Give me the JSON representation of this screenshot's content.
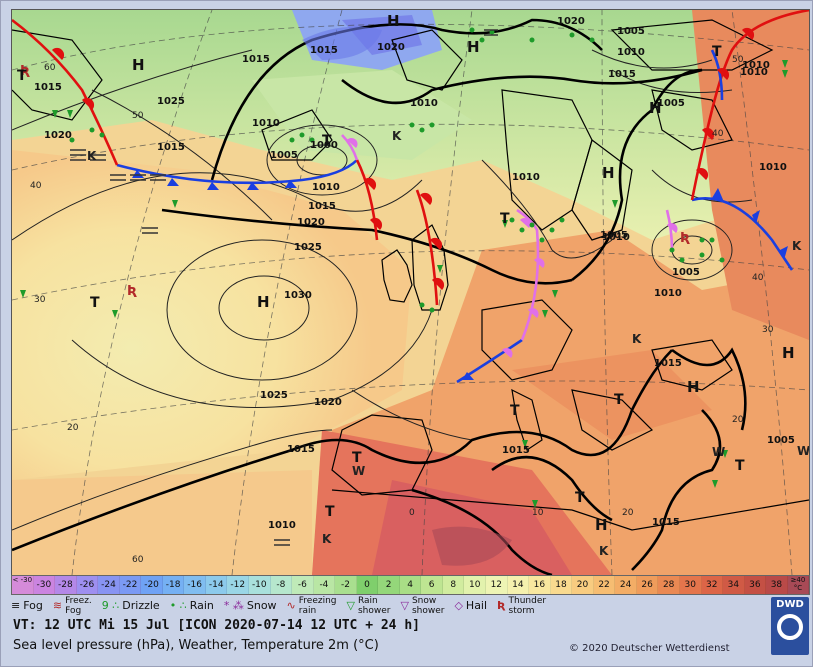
{
  "pressure_labels": [
    "1020",
    "1015",
    "1005",
    "1010",
    "1015",
    "1010",
    "1005",
    "1010",
    "1025",
    "1020",
    "1015",
    "1010",
    "1000",
    "1005",
    "1010",
    "1015",
    "1020",
    "1025",
    "1030",
    "1025",
    "1020",
    "1015",
    "1010",
    "1010",
    "1015",
    "1015",
    "1005",
    "1010",
    "1005",
    "1010",
    "1010",
    "1020",
    "1015",
    "1005",
    "1010",
    "1015",
    "1015"
  ],
  "highs": [
    "H",
    "H",
    "H",
    "H",
    "H",
    "H",
    "H",
    "H",
    "H"
  ],
  "thermal_lows": [
    "T",
    "T",
    "T",
    "T",
    "T",
    "T",
    "T",
    "T",
    "T",
    "T",
    "T"
  ],
  "lat_labels": [
    "60",
    "50",
    "40",
    "30",
    "20",
    "60",
    "50",
    "40",
    "40",
    "30",
    "20",
    "10",
    "0",
    "20"
  ],
  "scale_labels": [
    "< -30",
    "-30",
    "-28",
    "-26",
    "-24",
    "-22",
    "-20",
    "-18",
    "-16",
    "-14",
    "-12",
    "-10",
    "-8",
    "-6",
    "-4",
    "-2",
    "0",
    "2",
    "4",
    "6",
    "8",
    "10",
    "12",
    "14",
    "16",
    "18",
    "20",
    "22",
    "24",
    "26",
    "28",
    "30",
    "32",
    "34",
    "36",
    "38",
    "≥40 °C"
  ],
  "scale_colors": [
    "#d58bd9",
    "#cb84e0",
    "#b488e8",
    "#9e8ff0",
    "#8894f2",
    "#7b9af4",
    "#6fa2f5",
    "#75b0f3",
    "#80bdf0",
    "#8ccaec",
    "#9ad6e6",
    "#a9e0dc",
    "#b6e7cd",
    "#bfeab8",
    "#b9e6a4",
    "#a9df8f",
    "#7fcf6c",
    "#94d77a",
    "#a9de86",
    "#bee592",
    "#d1ec9f",
    "#e2f2ad",
    "#eef4b4",
    "#f5f1ae",
    "#f8e79f",
    "#f9da8f",
    "#f8cc80",
    "#f6bd72",
    "#f3ad66",
    "#ef9c5b",
    "#ea8953",
    "#e4754c",
    "#dc6547",
    "#d05a45",
    "#c45044",
    "#b94a48",
    "#a84a56"
  ],
  "legend": {
    "fog": "Fog",
    "freezing_fog": "Freez.\nFog",
    "drizzle": "Drizzle",
    "rain": "Rain",
    "snow": "Snow",
    "freezing_rain": "Freezing\nrain",
    "rain_shower": "Rain\nshower",
    "snow_shower": "Snow\nshower",
    "hail": "Hail",
    "thunderstorm": "Thunder\nstorm"
  },
  "valid_time": "VT: 12 UTC Mi  15 Jul [ICON 2020-07-14  12 UTC + 24 h]",
  "subtitle": "Sea level pressure (hPa), Weather, Temperature 2m (°C)",
  "copyright": "© 2020 Deutscher Wetterdienst",
  "logo_text": "DWD"
}
